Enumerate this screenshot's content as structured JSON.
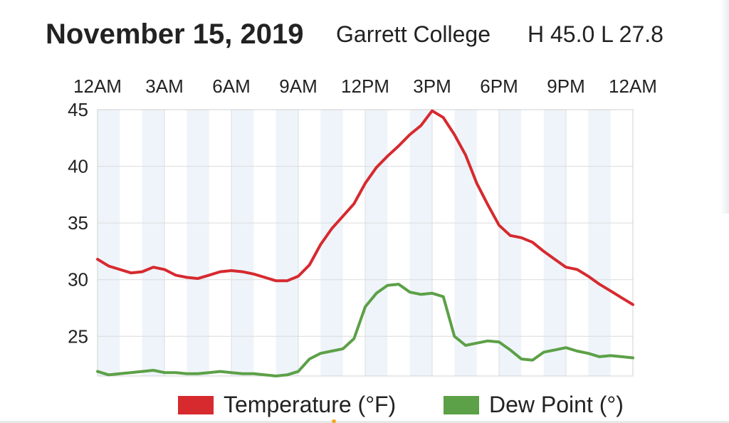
{
  "header": {
    "date": "November 15, 2019",
    "place": "Garrett College",
    "hilo": "H 45.0 L 27.8"
  },
  "colors": {
    "temperature": "#d62a2f",
    "dew_point": "#5ca047",
    "band": "#eef4fa",
    "grid": "#dcdcdc"
  },
  "chart_data": {
    "type": "line",
    "title": "November 15, 2019",
    "subtitle": "Garrett College  H 45.0 L 27.8",
    "xlabel": "",
    "ylabel": "",
    "x_ticks": [
      "12AM",
      "3AM",
      "6AM",
      "9AM",
      "12PM",
      "3PM",
      "6PM",
      "9PM",
      "12AM"
    ],
    "y_ticks": [
      25,
      30,
      35,
      40,
      45
    ],
    "xlim": [
      0,
      24
    ],
    "ylim": [
      21.5,
      45
    ],
    "grid": true,
    "legend_position": "bottom",
    "series": [
      {
        "name": "Temperature (°F)",
        "x": [
          0,
          0.5,
          1,
          1.5,
          2,
          2.5,
          3,
          3.5,
          4,
          4.5,
          5,
          5.5,
          6,
          6.5,
          7,
          7.5,
          8,
          8.5,
          9,
          9.5,
          10,
          10.5,
          11,
          11.5,
          12,
          12.5,
          13,
          13.5,
          14,
          14.5,
          15,
          15.5,
          16,
          16.5,
          17,
          17.5,
          18,
          18.5,
          19,
          19.5,
          20,
          20.5,
          21,
          21.5,
          22,
          22.5,
          23,
          23.5,
          24
        ],
        "values": [
          31.8,
          31.2,
          30.9,
          30.6,
          30.7,
          31.1,
          30.9,
          30.4,
          30.2,
          30.1,
          30.4,
          30.7,
          30.8,
          30.7,
          30.5,
          30.2,
          29.9,
          29.9,
          30.3,
          31.3,
          33.1,
          34.5,
          35.6,
          36.7,
          38.5,
          39.9,
          40.9,
          41.8,
          42.8,
          43.6,
          44.9,
          44.3,
          42.8,
          41.0,
          38.5,
          36.6,
          34.8,
          33.9,
          33.7,
          33.3,
          32.5,
          31.8,
          31.1,
          30.9,
          30.3,
          29.6,
          29.0,
          28.4,
          27.8
        ]
      },
      {
        "name": "Dew Point (°)",
        "x": [
          0,
          0.5,
          1,
          1.5,
          2,
          2.5,
          3,
          3.5,
          4,
          4.5,
          5,
          5.5,
          6,
          6.5,
          7,
          7.5,
          8,
          8.5,
          9,
          9.5,
          10,
          10.5,
          11,
          11.5,
          12,
          12.5,
          13,
          13.5,
          14,
          14.5,
          15,
          15.5,
          16,
          16.5,
          17,
          17.5,
          18,
          18.5,
          19,
          19.5,
          20,
          20.5,
          21,
          21.5,
          22,
          22.5,
          23,
          23.5,
          24
        ],
        "values": [
          21.9,
          21.6,
          21.7,
          21.8,
          21.9,
          22.0,
          21.8,
          21.8,
          21.7,
          21.7,
          21.8,
          21.9,
          21.8,
          21.7,
          21.7,
          21.6,
          21.5,
          21.6,
          21.9,
          23.0,
          23.5,
          23.7,
          23.9,
          24.8,
          27.6,
          28.8,
          29.5,
          29.6,
          28.9,
          28.7,
          28.8,
          28.5,
          25.0,
          24.2,
          24.4,
          24.6,
          24.5,
          23.8,
          23.0,
          22.9,
          23.6,
          23.8,
          24.0,
          23.7,
          23.5,
          23.2,
          23.3,
          23.2,
          23.1
        ]
      }
    ]
  },
  "legend": {
    "temperature_label": "Temperature (°F)",
    "dew_point_label": "Dew Point (°)"
  }
}
